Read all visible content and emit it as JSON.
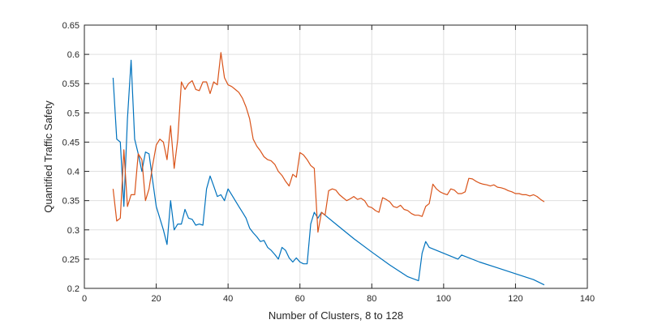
{
  "chart_data": {
    "type": "line",
    "title": "",
    "xlabel": "Number of Clusters, 8 to 128",
    "ylabel": "Quantified Traffic Safety",
    "xlim": [
      0,
      140
    ],
    "ylim": [
      0.2,
      0.65
    ],
    "xticks": [
      0,
      20,
      40,
      60,
      80,
      100,
      120,
      140
    ],
    "yticks": [
      0.2,
      0.25,
      0.3,
      0.35,
      0.4,
      0.45,
      0.5,
      0.55,
      0.6,
      0.65
    ],
    "xtick_labels": [
      "0",
      "20",
      "40",
      "60",
      "80",
      "100",
      "120",
      "140"
    ],
    "ytick_labels": [
      "0.2",
      "0.25",
      "0.3",
      "0.35",
      "0.4",
      "0.45",
      "0.5",
      "0.55",
      "0.6",
      "0.65"
    ],
    "grid": true,
    "legend": "none",
    "series": [
      {
        "color": "#0072BD",
        "x": [
          8,
          9,
          10,
          11,
          12,
          13,
          14,
          15,
          16,
          17,
          18,
          19,
          20,
          21,
          22,
          23,
          24,
          25,
          26,
          27,
          28,
          29,
          30,
          31,
          32,
          33,
          34,
          35,
          36,
          37,
          38,
          39,
          40,
          41,
          42,
          43,
          44,
          45,
          46,
          47,
          48,
          49,
          50,
          51,
          52,
          53,
          54,
          55,
          56,
          57,
          58,
          59,
          60,
          61,
          62,
          63,
          64,
          65,
          66,
          67,
          70,
          75,
          80,
          85,
          90,
          93,
          94,
          95,
          96,
          100,
          104,
          105,
          110,
          115,
          120,
          125,
          128
        ],
        "values": [
          0.56,
          0.455,
          0.45,
          0.34,
          0.49,
          0.59,
          0.455,
          0.43,
          0.4,
          0.433,
          0.43,
          0.385,
          0.34,
          0.32,
          0.3,
          0.275,
          0.35,
          0.3,
          0.31,
          0.31,
          0.335,
          0.32,
          0.318,
          0.308,
          0.31,
          0.308,
          0.37,
          0.392,
          0.375,
          0.357,
          0.36,
          0.35,
          0.37,
          0.36,
          0.35,
          0.34,
          0.33,
          0.32,
          0.303,
          0.295,
          0.288,
          0.28,
          0.282,
          0.27,
          0.265,
          0.258,
          0.25,
          0.27,
          0.265,
          0.252,
          0.245,
          0.252,
          0.245,
          0.242,
          0.242,
          0.31,
          0.33,
          0.32,
          0.33,
          0.325,
          0.31,
          0.285,
          0.262,
          0.24,
          0.22,
          0.213,
          0.26,
          0.28,
          0.27,
          0.26,
          0.25,
          0.257,
          0.245,
          0.235,
          0.225,
          0.215,
          0.206
        ]
      },
      {
        "color": "#D95319",
        "x": [
          8,
          9,
          10,
          11,
          12,
          13,
          14,
          15,
          16,
          17,
          18,
          19,
          20,
          21,
          22,
          23,
          24,
          25,
          26,
          27,
          28,
          29,
          30,
          31,
          32,
          33,
          34,
          35,
          36,
          37,
          38,
          39,
          40,
          41,
          42,
          43,
          44,
          45,
          46,
          47,
          48,
          49,
          50,
          51,
          52,
          53,
          54,
          55,
          56,
          57,
          58,
          59,
          60,
          61,
          62,
          63,
          64,
          65,
          66,
          67,
          68,
          69,
          70,
          71,
          72,
          73,
          74,
          75,
          76,
          77,
          78,
          79,
          80,
          81,
          82,
          83,
          84,
          85,
          86,
          87,
          88,
          89,
          90,
          91,
          92,
          93,
          94,
          95,
          96,
          97,
          98,
          99,
          100,
          101,
          102,
          103,
          104,
          105,
          106,
          107,
          108,
          109,
          110,
          111,
          112,
          113,
          114,
          115,
          116,
          117,
          118,
          119,
          120,
          121,
          122,
          123,
          124,
          125,
          126,
          127,
          128
        ],
        "values": [
          0.37,
          0.315,
          0.32,
          0.437,
          0.34,
          0.36,
          0.36,
          0.43,
          0.42,
          0.35,
          0.37,
          0.41,
          0.445,
          0.455,
          0.45,
          0.42,
          0.478,
          0.405,
          0.455,
          0.553,
          0.54,
          0.55,
          0.555,
          0.54,
          0.538,
          0.553,
          0.553,
          0.533,
          0.553,
          0.548,
          0.603,
          0.56,
          0.548,
          0.545,
          0.54,
          0.535,
          0.525,
          0.51,
          0.49,
          0.455,
          0.443,
          0.435,
          0.425,
          0.42,
          0.418,
          0.412,
          0.4,
          0.393,
          0.383,
          0.375,
          0.395,
          0.39,
          0.432,
          0.428,
          0.42,
          0.41,
          0.405,
          0.296,
          0.33,
          0.325,
          0.367,
          0.37,
          0.368,
          0.36,
          0.355,
          0.35,
          0.353,
          0.357,
          0.352,
          0.354,
          0.35,
          0.34,
          0.338,
          0.333,
          0.33,
          0.355,
          0.352,
          0.348,
          0.34,
          0.338,
          0.342,
          0.335,
          0.333,
          0.328,
          0.325,
          0.325,
          0.323,
          0.34,
          0.345,
          0.378,
          0.37,
          0.365,
          0.362,
          0.36,
          0.37,
          0.368,
          0.362,
          0.362,
          0.365,
          0.388,
          0.387,
          0.383,
          0.38,
          0.378,
          0.377,
          0.375,
          0.377,
          0.373,
          0.372,
          0.37,
          0.367,
          0.365,
          0.362,
          0.362,
          0.36,
          0.36,
          0.358,
          0.36,
          0.357,
          0.352,
          0.348
        ]
      }
    ]
  }
}
